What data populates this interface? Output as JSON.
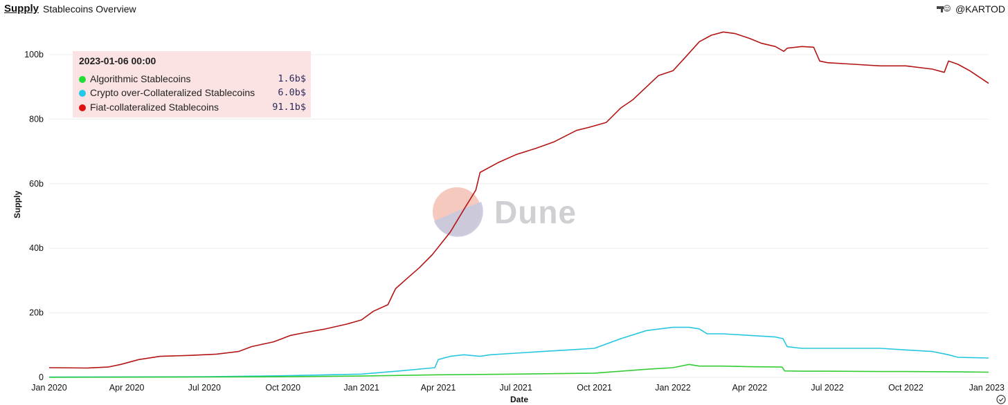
{
  "header": {
    "tab_label": "Supply",
    "title": "Stablecoins Overview",
    "author": "@KARTOD",
    "author_icon": "gun-emoji-icon"
  },
  "tooltip": {
    "date": "2023-01-06 00:00",
    "rows": [
      {
        "label": "Algorithmic Stablecoins",
        "value": "1.6b$",
        "color": "#22dd33"
      },
      {
        "label": "Crypto over-Collateralized Stablecoins",
        "value": "6.0b$",
        "color": "#22c8e8"
      },
      {
        "label": "Fiat-collateralized Stablecoins",
        "value": "91.1b$",
        "color": "#dd1111"
      }
    ]
  },
  "watermark": {
    "text": "Dune",
    "icon": "dune-logo-icon"
  },
  "chart_data": {
    "type": "line",
    "xlabel": "Date",
    "ylabel": "Supply",
    "xlim": [
      "2020-01-01",
      "2023-01-06"
    ],
    "ylim": [
      0,
      110
    ],
    "yticks": [
      0,
      20,
      40,
      60,
      80,
      100
    ],
    "ytick_labels": [
      "0",
      "20b",
      "40b",
      "60b",
      "80b",
      "100b"
    ],
    "xticks": [
      "2020-01-01",
      "2020-04-01",
      "2020-07-01",
      "2020-10-01",
      "2021-01-01",
      "2021-04-01",
      "2021-07-01",
      "2021-10-01",
      "2022-01-01",
      "2022-04-01",
      "2022-07-01",
      "2022-10-01",
      "2023-01-01"
    ],
    "xtick_labels": [
      "Jan 2020",
      "Apr 2020",
      "Jul 2020",
      "Oct 2020",
      "Jan 2021",
      "Apr 2021",
      "Jul 2021",
      "Oct 2021",
      "Jan 2022",
      "Apr 2022",
      "Jul 2022",
      "Oct 2022",
      "Jan 2023"
    ],
    "grid": true,
    "series": [
      {
        "name": "Fiat-collateralized Stablecoins",
        "color": "#b31414",
        "x": [
          "2020-01-01",
          "2020-02-15",
          "2020-03-10",
          "2020-03-25",
          "2020-04-15",
          "2020-05-10",
          "2020-06-15",
          "2020-07-15",
          "2020-08-10",
          "2020-08-25",
          "2020-09-20",
          "2020-10-10",
          "2020-10-25",
          "2020-11-20",
          "2020-12-15",
          "2021-01-01",
          "2021-01-15",
          "2021-02-01",
          "2021-02-10",
          "2021-02-25",
          "2021-03-10",
          "2021-03-25",
          "2021-04-15",
          "2021-05-01",
          "2021-05-15",
          "2021-05-20",
          "2021-06-10",
          "2021-07-01",
          "2021-07-25",
          "2021-08-15",
          "2021-09-10",
          "2021-09-25",
          "2021-10-15",
          "2021-11-01",
          "2021-11-15",
          "2021-12-01",
          "2021-12-15",
          "2022-01-01",
          "2022-01-15",
          "2022-02-01",
          "2022-02-15",
          "2022-03-01",
          "2022-03-15",
          "2022-04-01",
          "2022-04-15",
          "2022-05-01",
          "2022-05-11",
          "2022-05-15",
          "2022-06-01",
          "2022-06-15",
          "2022-06-22",
          "2022-07-01",
          "2022-08-01",
          "2022-09-01",
          "2022-10-01",
          "2022-11-01",
          "2022-11-15",
          "2022-11-20",
          "2022-12-01",
          "2022-12-15",
          "2023-01-06"
        ],
        "values": [
          3.0,
          2.9,
          3.2,
          4.0,
          5.5,
          6.5,
          6.8,
          7.2,
          8.0,
          9.5,
          11.0,
          13.0,
          13.8,
          15.0,
          16.5,
          17.8,
          20.5,
          22.5,
          27.5,
          31.0,
          34.0,
          38.0,
          45.0,
          52.0,
          58.0,
          63.5,
          66.5,
          69.0,
          71.0,
          73.0,
          76.5,
          77.5,
          79.0,
          83.5,
          86.0,
          90.0,
          93.5,
          95.0,
          99.0,
          104.0,
          106.0,
          107.0,
          106.5,
          105.0,
          103.5,
          102.5,
          101.0,
          102.0,
          102.5,
          102.3,
          98.0,
          97.5,
          97.0,
          96.5,
          96.5,
          95.5,
          94.5,
          98.0,
          97.0,
          95.0,
          91.1
        ]
      },
      {
        "name": "Crypto over-Collateralized Stablecoins",
        "color": "#26c6e0",
        "x": [
          "2020-01-01",
          "2020-07-01",
          "2020-10-01",
          "2021-01-01",
          "2021-02-15",
          "2021-03-28",
          "2021-04-01",
          "2021-04-15",
          "2021-05-01",
          "2021-05-20",
          "2021-06-01",
          "2021-07-01",
          "2021-08-01",
          "2021-09-01",
          "2021-10-01",
          "2021-11-01",
          "2021-12-01",
          "2022-01-01",
          "2022-01-20",
          "2022-02-01",
          "2022-02-10",
          "2022-03-01",
          "2022-04-01",
          "2022-05-01",
          "2022-05-10",
          "2022-05-15",
          "2022-06-01",
          "2022-07-01",
          "2022-08-01",
          "2022-09-01",
          "2022-10-01",
          "2022-11-01",
          "2022-11-20",
          "2022-12-01",
          "2023-01-06"
        ],
        "values": [
          0.1,
          0.2,
          0.5,
          1.0,
          2.0,
          3.0,
          5.5,
          6.5,
          7.0,
          6.5,
          7.0,
          7.5,
          8.0,
          8.5,
          9.0,
          12.0,
          14.5,
          15.5,
          15.5,
          15.0,
          13.5,
          13.5,
          13.0,
          12.5,
          12.0,
          9.5,
          9.0,
          9.0,
          9.0,
          9.0,
          8.5,
          8.0,
          7.0,
          6.2,
          6.0
        ]
      },
      {
        "name": "Algorithmic Stablecoins",
        "color": "#33cc33",
        "x": [
          "2020-01-01",
          "2020-07-01",
          "2020-10-01",
          "2021-01-01",
          "2021-04-01",
          "2021-07-01",
          "2021-10-01",
          "2021-12-01",
          "2022-01-01",
          "2022-01-20",
          "2022-02-01",
          "2022-03-01",
          "2022-04-01",
          "2022-05-09",
          "2022-05-12",
          "2022-06-01",
          "2022-07-01",
          "2022-09-01",
          "2022-10-01",
          "2022-12-01",
          "2023-01-06"
        ],
        "values": [
          0.0,
          0.1,
          0.2,
          0.4,
          0.8,
          1.0,
          1.3,
          2.5,
          3.0,
          4.0,
          3.5,
          3.5,
          3.3,
          3.2,
          2.0,
          1.9,
          1.9,
          1.8,
          1.8,
          1.7,
          1.6
        ]
      }
    ]
  }
}
